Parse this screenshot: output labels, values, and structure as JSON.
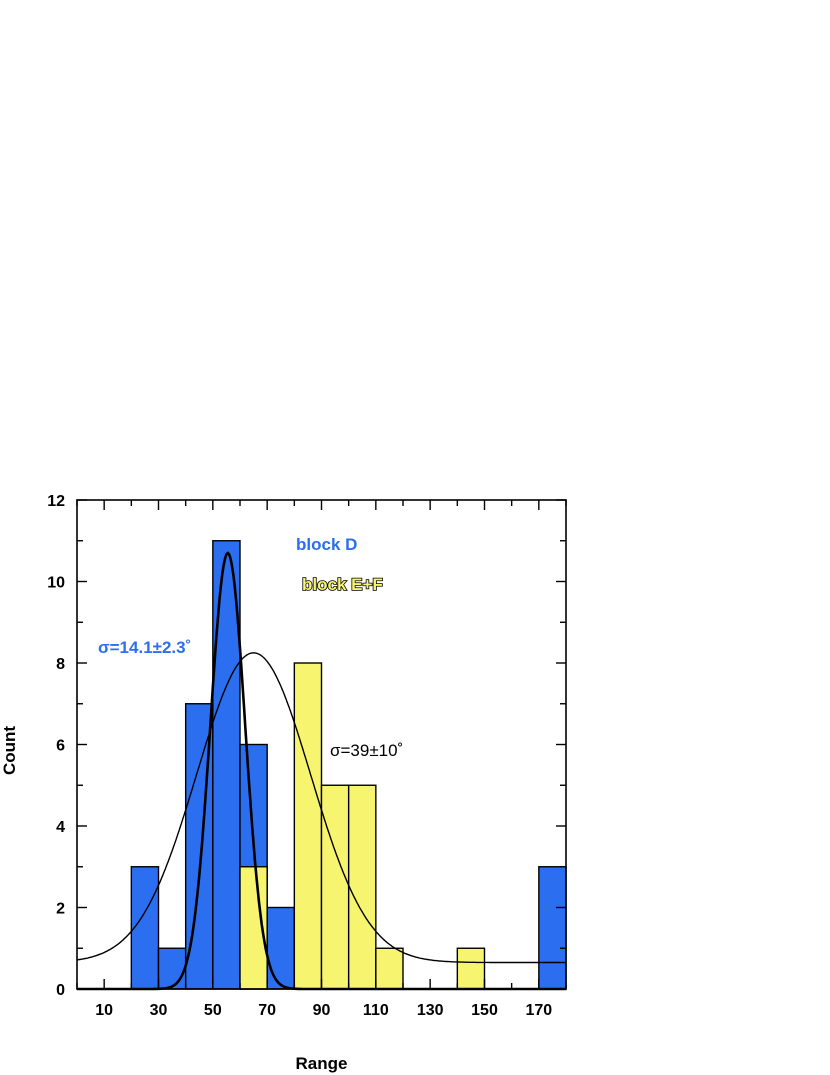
{
  "chart_data": {
    "type": "bar",
    "title": "",
    "xlabel": "Range",
    "ylabel": "Count",
    "xlim": [
      0,
      180
    ],
    "ylim": [
      0,
      12
    ],
    "x_ticks": [
      10,
      30,
      50,
      70,
      90,
      110,
      130,
      150,
      170
    ],
    "y_ticks": [
      0,
      2,
      4,
      6,
      8,
      10,
      12
    ],
    "bin_width": 10,
    "colors": {
      "block_d": "#2b6ff0",
      "block_ef": "#f7f570",
      "outline": "#000000"
    },
    "series": [
      {
        "name": "block D",
        "bins": [
          {
            "x0": 20,
            "count": 3
          },
          {
            "x0": 30,
            "count": 1
          },
          {
            "x0": 40,
            "count": 7
          },
          {
            "x0": 50,
            "count": 11
          },
          {
            "x0": 60,
            "count": 6
          },
          {
            "x0": 70,
            "count": 2
          },
          {
            "x0": 170,
            "count": 3
          }
        ]
      },
      {
        "name": "block E+F",
        "bins": [
          {
            "x0": 60,
            "count": 3
          },
          {
            "x0": 80,
            "count": 8
          },
          {
            "x0": 90,
            "count": 5
          },
          {
            "x0": 100,
            "count": 5
          },
          {
            "x0": 110,
            "count": 1
          },
          {
            "x0": 140,
            "count": 1
          }
        ]
      }
    ],
    "fits": [
      {
        "series": "block D",
        "type": "gaussian",
        "amplitude": 10.7,
        "center": 55.5,
        "sigma": 6.4,
        "offset": 0,
        "annotation": "σ=14.1±2.3˚"
      },
      {
        "series": "block E+F",
        "type": "gaussian",
        "amplitude": 7.6,
        "center": 65,
        "sigma": 21,
        "offset": 0.65,
        "annotation": "σ=39±10˚"
      }
    ],
    "legend_placement": "top-center",
    "grid": false
  }
}
